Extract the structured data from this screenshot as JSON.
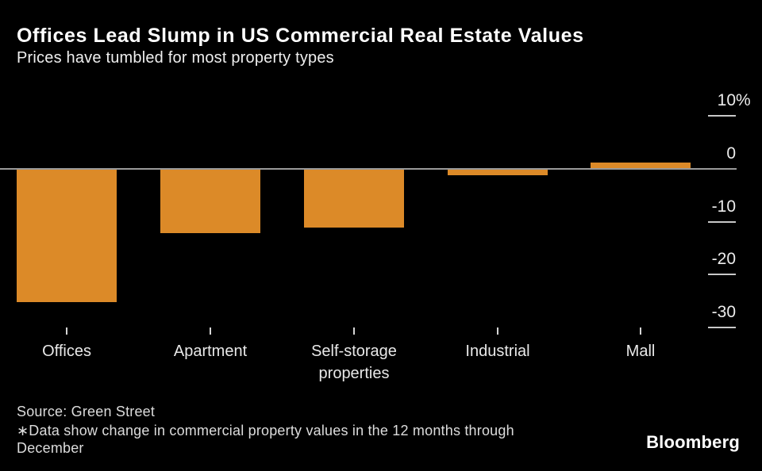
{
  "footer": {
    "source": "Source: Green Street",
    "footnote_lines": [
      "∗Data show change in commercial property values in the 12 months through",
      "December"
    ],
    "logo": "Bloomberg"
  },
  "chart_data": {
    "type": "bar",
    "title": "Offices Lead Slump in US Commercial Real Estate Values",
    "subtitle": "Prices have tumbled for most property types",
    "categories": [
      "Offices",
      "Apartment",
      "Self-storage properties",
      "Industrial",
      "Mall"
    ],
    "values": [
      -25,
      -12,
      -11,
      -1,
      1
    ],
    "unit": "%",
    "xlabel": "",
    "ylabel": "",
    "ylim": [
      -33,
      13
    ],
    "yticks": [
      10,
      0,
      -10,
      -20,
      -30
    ],
    "ytick_labels": [
      "10%",
      "0",
      "-10",
      "-20",
      "-30"
    ],
    "grid": false,
    "legend": false,
    "source": "Green Street",
    "colors": {
      "bar": "#DC8A28",
      "axis_line": "#9A9A9A",
      "y_tick": "#C8C8C8",
      "x_tick": "#D5D5D5",
      "background": "#000000",
      "title_text": "#FFFFFF"
    }
  }
}
